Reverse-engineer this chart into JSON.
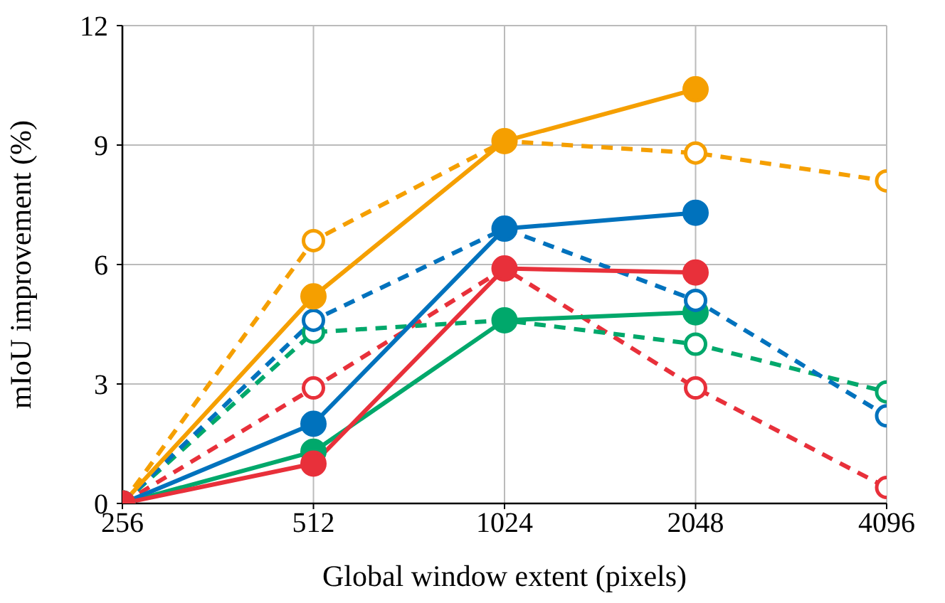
{
  "chart_data": {
    "type": "line",
    "xlabel": "Global window extent (pixels)",
    "ylabel": "mIoU improvement (%)",
    "categories": [
      "256",
      "512",
      "1024",
      "2048",
      "4096"
    ],
    "ylim": [
      0,
      12
    ],
    "yticks": [
      0,
      3,
      6,
      9,
      12
    ],
    "grid": true,
    "legend": false,
    "marker": "circle",
    "series": [
      {
        "color": "#f59f00",
        "line_style": "dashed",
        "values": [
          0,
          6.6,
          9.1,
          8.8,
          8.1
        ]
      },
      {
        "color": "#e8303a",
        "line_style": "dashed",
        "values": [
          0,
          2.9,
          5.9,
          2.9,
          0.4
        ]
      },
      {
        "color": "#00a86b",
        "line_style": "dashed",
        "values": [
          0,
          4.3,
          4.6,
          4.0,
          2.8
        ]
      },
      {
        "color": "#00a86b",
        "line_style": "solid",
        "values": [
          0,
          1.3,
          4.6,
          4.8,
          null
        ]
      },
      {
        "color": "#0072bd",
        "line_style": "dashed",
        "values": [
          0,
          4.6,
          6.9,
          5.1,
          2.2
        ]
      },
      {
        "color": "#f59f00",
        "line_style": "solid",
        "values": [
          0,
          5.2,
          9.1,
          10.4,
          null
        ]
      },
      {
        "color": "#0072bd",
        "line_style": "solid",
        "values": [
          0,
          2.0,
          6.9,
          7.3,
          null
        ]
      },
      {
        "color": "#e8303a",
        "line_style": "solid",
        "values": [
          0,
          1.0,
          5.9,
          5.8,
          null
        ]
      }
    ]
  }
}
